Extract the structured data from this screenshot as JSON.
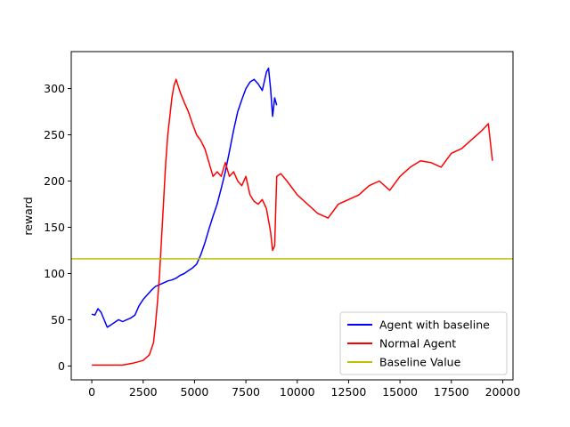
{
  "chart_data": {
    "type": "line",
    "title": "",
    "xlabel": "",
    "ylabel": "reward",
    "xlim": [
      -1000,
      20500
    ],
    "ylim": [
      -15,
      340
    ],
    "xticks": [
      0,
      2500,
      5000,
      7500,
      10000,
      12500,
      15000,
      17500,
      20000
    ],
    "yticks": [
      0,
      50,
      100,
      150,
      200,
      250,
      300
    ],
    "grid": false,
    "legend_position": "lower-right",
    "series": [
      {
        "name": "Agent with baseline",
        "color": "#0000ff",
        "x": [
          0,
          150,
          300,
          450,
          600,
          750,
          900,
          1100,
          1300,
          1500,
          1700,
          1900,
          2100,
          2300,
          2500,
          2700,
          2900,
          3100,
          3300,
          3500,
          3700,
          3900,
          4100,
          4300,
          4500,
          4700,
          4900,
          5100,
          5300,
          5500,
          5700,
          5900,
          6100,
          6300,
          6500,
          6700,
          6900,
          7100,
          7300,
          7500,
          7700,
          7900,
          8100,
          8300,
          8500,
          8600,
          8700,
          8800,
          8900,
          9000
        ],
        "y": [
          56,
          55,
          62,
          58,
          50,
          42,
          44,
          47,
          50,
          48,
          50,
          52,
          55,
          65,
          72,
          77,
          82,
          86,
          88,
          90,
          92,
          93,
          95,
          98,
          100,
          103,
          106,
          110,
          120,
          133,
          148,
          162,
          175,
          192,
          210,
          232,
          255,
          275,
          288,
          300,
          307,
          310,
          305,
          298,
          318,
          322,
          300,
          270,
          290,
          282
        ]
      },
      {
        "name": "Normal Agent",
        "color": "#ff0000",
        "x": [
          0,
          500,
          1000,
          1500,
          2000,
          2500,
          2800,
          3000,
          3100,
          3200,
          3300,
          3400,
          3500,
          3600,
          3700,
          3800,
          3900,
          4000,
          4100,
          4300,
          4500,
          4700,
          4900,
          5100,
          5300,
          5500,
          5700,
          5900,
          6100,
          6300,
          6500,
          6700,
          6900,
          7100,
          7300,
          7500,
          7700,
          7900,
          8100,
          8300,
          8500,
          8700,
          8800,
          8900,
          9000,
          9200,
          9500,
          10000,
          10500,
          11000,
          11500,
          12000,
          12500,
          13000,
          13500,
          14000,
          14500,
          15000,
          15500,
          16000,
          16500,
          17000,
          17500,
          18000,
          18500,
          19000,
          19300,
          19500
        ],
        "y": [
          1,
          1,
          1,
          1,
          3,
          6,
          12,
          25,
          45,
          70,
          100,
          140,
          180,
          220,
          250,
          270,
          290,
          303,
          310,
          296,
          285,
          275,
          262,
          250,
          244,
          235,
          220,
          205,
          210,
          205,
          220,
          205,
          210,
          200,
          195,
          205,
          185,
          178,
          175,
          180,
          170,
          145,
          125,
          130,
          205,
          208,
          200,
          185,
          175,
          165,
          160,
          175,
          180,
          185,
          195,
          200,
          190,
          205,
          215,
          222,
          220,
          215,
          230,
          235,
          245,
          255,
          262,
          222
        ]
      }
    ],
    "hlines": [
      {
        "name": "Baseline Value",
        "color": "#bfbf00",
        "y": 116
      }
    ]
  }
}
